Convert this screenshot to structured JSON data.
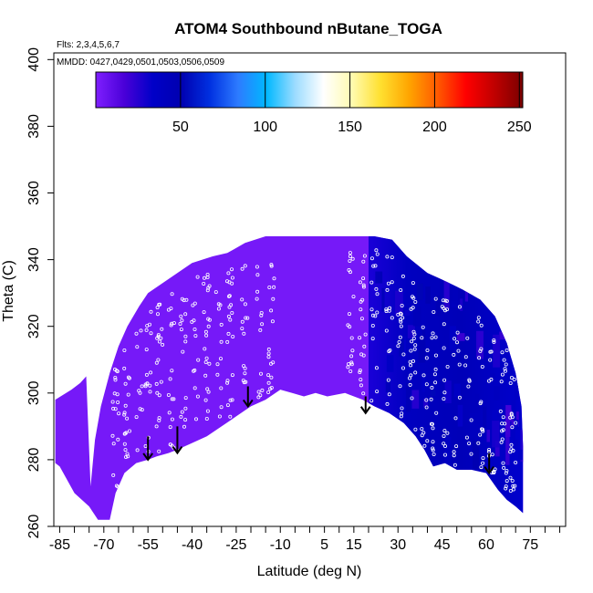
{
  "chart_data": {
    "type": "heatmap",
    "title": "ATOM4 Southbound nButane_TOGA",
    "subtitle_flights": "Flts: 2,3,4,5,6,7",
    "subtitle_dates": "MMDD: 0427,0429,0501,0503,0506,0509",
    "xlabel": "Latitude (deg N)",
    "ylabel": "Theta (C)",
    "xlim": [
      -87,
      87
    ],
    "ylim": [
      260,
      402
    ],
    "x_ticks": [
      -85,
      -70,
      -55,
      -40,
      -25,
      -10,
      5,
      15,
      30,
      45,
      60,
      75
    ],
    "x_minor_ticks": [
      -80,
      -75,
      -65,
      -60,
      -50,
      -45,
      -35,
      -30,
      -20,
      -15,
      -5,
      0,
      10,
      20,
      25,
      35,
      40,
      50,
      55,
      65,
      70,
      80,
      85
    ],
    "y_ticks": [
      260,
      280,
      300,
      320,
      340,
      360,
      380,
      400
    ],
    "colorbar": {
      "min": 0,
      "max": 252,
      "ticks": [
        50,
        100,
        150,
        200,
        250
      ],
      "colors": [
        "#7f1fff",
        "#4a00d8",
        "#0000c8",
        "#0000b0",
        "#0030e0",
        "#2d7bff",
        "#00b8ff",
        "#9cdcff",
        "#ffffff",
        "#fffbb0",
        "#ffe030",
        "#ffa500",
        "#ff5a00",
        "#ff0000",
        "#c00000",
        "#7a0000"
      ]
    },
    "field": {
      "background_value": 3,
      "boundary_top": [
        [
          -74.5,
          272
        ],
        [
          -73,
          286
        ],
        [
          -71,
          296
        ],
        [
          -68,
          306
        ],
        [
          -65,
          314
        ],
        [
          -62,
          320
        ],
        [
          -58,
          326
        ],
        [
          -55,
          330
        ],
        [
          -50,
          333
        ],
        [
          -45,
          336
        ],
        [
          -40,
          339
        ],
        [
          -33,
          341
        ],
        [
          -28,
          342
        ],
        [
          -22,
          345
        ],
        [
          -15,
          347
        ],
        [
          -5,
          347
        ],
        [
          5,
          347
        ],
        [
          15,
          347
        ],
        [
          22,
          347
        ],
        [
          28,
          346
        ],
        [
          33,
          341
        ],
        [
          40,
          336
        ],
        [
          45,
          334
        ],
        [
          52,
          331
        ],
        [
          58,
          328
        ],
        [
          63,
          323
        ],
        [
          67,
          315
        ],
        [
          70,
          306
        ],
        [
          72,
          296
        ],
        [
          72.5,
          284
        ],
        [
          72.5,
          264
        ]
      ],
      "boundary_bottom": [
        [
          -85,
          278
        ],
        [
          -80,
          270
        ],
        [
          -75,
          266
        ],
        [
          -72,
          262
        ],
        [
          -68,
          262
        ],
        [
          -66,
          270
        ],
        [
          -63,
          276
        ],
        [
          -59,
          279
        ],
        [
          -55,
          280
        ],
        [
          -52,
          281
        ],
        [
          -48,
          282
        ],
        [
          -45,
          283
        ],
        [
          -40,
          285
        ],
        [
          -35,
          287
        ],
        [
          -30,
          290
        ],
        [
          -25,
          293
        ],
        [
          -20,
          296
        ],
        [
          -15,
          298
        ],
        [
          -10,
          301
        ],
        [
          -6,
          300
        ],
        [
          -2,
          299
        ],
        [
          2,
          300
        ],
        [
          6,
          299
        ],
        [
          12,
          300
        ],
        [
          18,
          298
        ],
        [
          22,
          296
        ],
        [
          27,
          294
        ],
        [
          32,
          291
        ],
        [
          36,
          287
        ],
        [
          39,
          283
        ],
        [
          42,
          278
        ],
        [
          46,
          279
        ],
        [
          50,
          277
        ],
        [
          55,
          277
        ],
        [
          60,
          276
        ],
        [
          64,
          271
        ],
        [
          67,
          268
        ],
        [
          70,
          266
        ],
        [
          72.5,
          264
        ]
      ],
      "left_edge": [
        [
          -86.5,
          279
        ],
        [
          -86.5,
          298
        ],
        [
          -81,
          301
        ],
        [
          -78,
          303
        ],
        [
          -76,
          305
        ]
      ],
      "enhanced_region": {
        "lat_range": [
          20,
          72.5
        ],
        "typical_value": 35,
        "peak_value": 60
      }
    },
    "profiles_south": [
      -66,
      -62,
      -58,
      -55,
      -51,
      -47,
      -43,
      -39,
      -35,
      -31,
      -27,
      -22,
      -17,
      -13
    ],
    "profiles_north": [
      14,
      18,
      22,
      27,
      31,
      35,
      39,
      42,
      46,
      50,
      54,
      58,
      62,
      66,
      69
    ],
    "arrows": [
      {
        "lat": -55,
        "theta_top": 287,
        "theta_tip": 280
      },
      {
        "lat": -45,
        "theta_top": 290,
        "theta_tip": 282
      },
      {
        "lat": -21,
        "theta_top": 302,
        "theta_tip": 296
      },
      {
        "lat": 19,
        "theta_top": 299,
        "theta_tip": 294
      },
      {
        "lat": 61,
        "theta_top": 282,
        "theta_tip": 276
      }
    ]
  }
}
